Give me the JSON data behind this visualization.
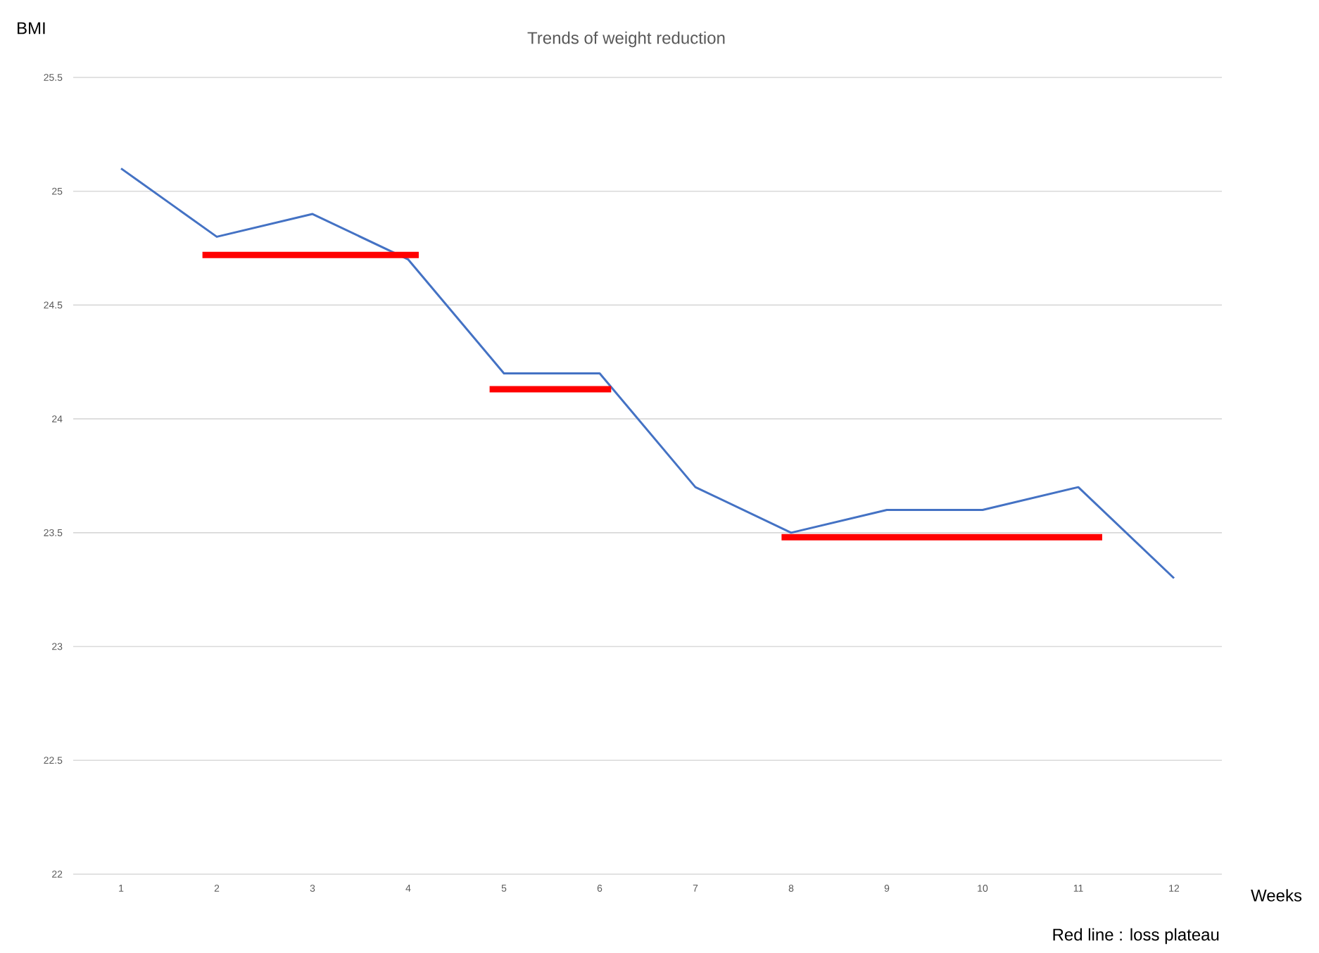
{
  "chart_data": {
    "type": "line",
    "title": "Trends of weight reduction",
    "xlabel": "Weeks",
    "ylabel": "BMI",
    "x": [
      1,
      2,
      3,
      4,
      5,
      6,
      7,
      8,
      9,
      10,
      11,
      12
    ],
    "series": [
      {
        "color": "#4472c4",
        "values": [
          25.1,
          24.8,
          24.9,
          24.7,
          24.2,
          24.2,
          23.7,
          23.5,
          23.6,
          23.6,
          23.7,
          23.3
        ]
      },
      {
        "type": "line",
        "color": "#ff0000",
        "x": [
          1.85,
          4.11
        ],
        "values": [
          24.72,
          24.72
        ]
      },
      {
        "type": "line",
        "color": "#ff0000",
        "x": [
          4.85,
          6.12
        ],
        "values": [
          24.13,
          24.13
        ]
      },
      {
        "type": "line",
        "color": "#ff0000",
        "x": [
          7.9,
          11.25
        ],
        "values": [
          23.48,
          23.48
        ]
      }
    ],
    "xlim": [
      0.5,
      12.5
    ],
    "xticks": [
      1,
      2,
      3,
      4,
      5,
      6,
      7,
      8,
      9,
      10,
      11,
      12
    ],
    "ylim": [
      22,
      25.5
    ],
    "yticks": [
      22,
      22.5,
      23,
      23.5,
      24,
      24.5,
      25,
      25.5
    ],
    "grid": "y",
    "marker": "none",
    "annotations": [
      "Red line : loss plateau"
    ]
  }
}
